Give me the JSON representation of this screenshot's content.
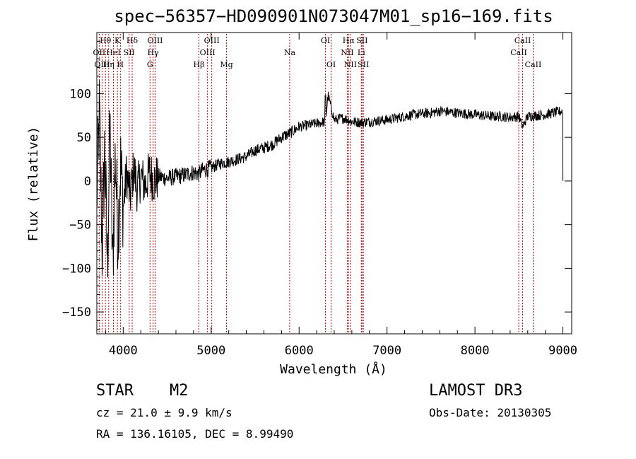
{
  "chart_data": {
    "type": "line",
    "title": "spec−56357−HD090901N073047M01_sp16−169.fits",
    "xlabel": "Wavelength (Å)",
    "ylabel": "Flux (relative)",
    "xlim": [
      3700,
      9100
    ],
    "ylim": [
      -175,
      170
    ],
    "x_ticks": [
      4000,
      5000,
      6000,
      7000,
      8000,
      9000
    ],
    "y_ticks": [
      100,
      50,
      0,
      -50,
      -100,
      -150
    ],
    "y_tick_labels": [
      "100",
      "50",
      "0",
      "−50",
      "−100",
      "−150"
    ],
    "grid": false,
    "series": [
      {
        "name": "spectrum",
        "x": [
          3700,
          3730,
          3760,
          3790,
          3820,
          3850,
          3880,
          3910,
          3940,
          3970,
          4000,
          4040,
          4080,
          4120,
          4160,
          4200,
          4250,
          4300,
          4350,
          4400,
          4500,
          4600,
          4700,
          4800,
          4860,
          4900,
          5000,
          5100,
          5200,
          5300,
          5400,
          5500,
          5600,
          5700,
          5800,
          5900,
          6000,
          6100,
          6200,
          6300,
          6330,
          6400,
          6500,
          6560,
          6600,
          6700,
          6800,
          6900,
          7000,
          7100,
          7200,
          7300,
          7400,
          7500,
          7600,
          7700,
          7800,
          7900,
          8000,
          8100,
          8200,
          8300,
          8400,
          8500,
          8540,
          8600,
          8700,
          8800,
          8900,
          8990,
          9000
        ],
        "y": [
          -20,
          80,
          -80,
          40,
          -95,
          60,
          -100,
          30,
          -60,
          20,
          -30,
          10,
          -20,
          15,
          -10,
          5,
          -5,
          10,
          0,
          5,
          3,
          5,
          7,
          10,
          8,
          12,
          15,
          20,
          22,
          25,
          28,
          35,
          38,
          42,
          50,
          55,
          62,
          64,
          66,
          68,
          98,
          70,
          72,
          70,
          68,
          67,
          68,
          69,
          70,
          72,
          74,
          76,
          77,
          78,
          80,
          79,
          78,
          77,
          76,
          75,
          74,
          74,
          73,
          74,
          62,
          74,
          75,
          76,
          78,
          80,
          0
        ]
      }
    ],
    "spectral_lines": [
      {
        "label": "OII",
        "x": 3727,
        "row": 2
      },
      {
        "label": "Hθ",
        "x": 3798,
        "row": 1
      },
      {
        "label": "OIII",
        "x": 3760,
        "row": 3
      },
      {
        "label": "HeI",
        "x": 3889,
        "row": 2
      },
      {
        "label": "Hη",
        "x": 3835,
        "row": 3
      },
      {
        "label": "K",
        "x": 3934,
        "row": 1
      },
      {
        "label": "H",
        "x": 3968,
        "row": 3
      },
      {
        "label": "SII",
        "x": 4068,
        "row": 2
      },
      {
        "label": "Hδ",
        "x": 4102,
        "row": 1
      },
      {
        "label": "OIII",
        "x": 4363,
        "row": 1
      },
      {
        "label": "Hγ",
        "x": 4340,
        "row": 2
      },
      {
        "label": "G",
        "x": 4305,
        "row": 3
      },
      {
        "label": "Hβ",
        "x": 4861,
        "row": 3
      },
      {
        "label": "OIII",
        "x": 5007,
        "row": 1
      },
      {
        "label": "OIII",
        "x": 4959,
        "row": 2
      },
      {
        "label": "Mg",
        "x": 5175,
        "row": 3
      },
      {
        "label": "Na",
        "x": 5893,
        "row": 2
      },
      {
        "label": "OI",
        "x": 6300,
        "row": 1
      },
      {
        "label": "OI",
        "x": 6364,
        "row": 3
      },
      {
        "label": "Hα",
        "x": 6563,
        "row": 1
      },
      {
        "label": "NII",
        "x": 6548,
        "row": 2
      },
      {
        "label": "NII",
        "x": 6584,
        "row": 3
      },
      {
        "label": "SII",
        "x": 6716,
        "row": 1
      },
      {
        "label": "Li",
        "x": 6708,
        "row": 2
      },
      {
        "label": "SII",
        "x": 6731,
        "row": 3
      },
      {
        "label": "CaII",
        "x": 8542,
        "row": 1
      },
      {
        "label": "CaII",
        "x": 8498,
        "row": 2
      },
      {
        "label": "CaII",
        "x": 8662,
        "row": 3
      }
    ]
  },
  "info": {
    "class": "STAR",
    "subclass": "M2",
    "survey": "LAMOST DR3",
    "cz": "cz = 21.0 ± 9.9 km/s",
    "obs_date": "Obs-Date: 20130305",
    "radec": "RA = 136.16105, DEC =   8.99490"
  },
  "colors": {
    "line": "#000000",
    "spectral_marker": "#cc0000",
    "background": "#ffffff"
  }
}
